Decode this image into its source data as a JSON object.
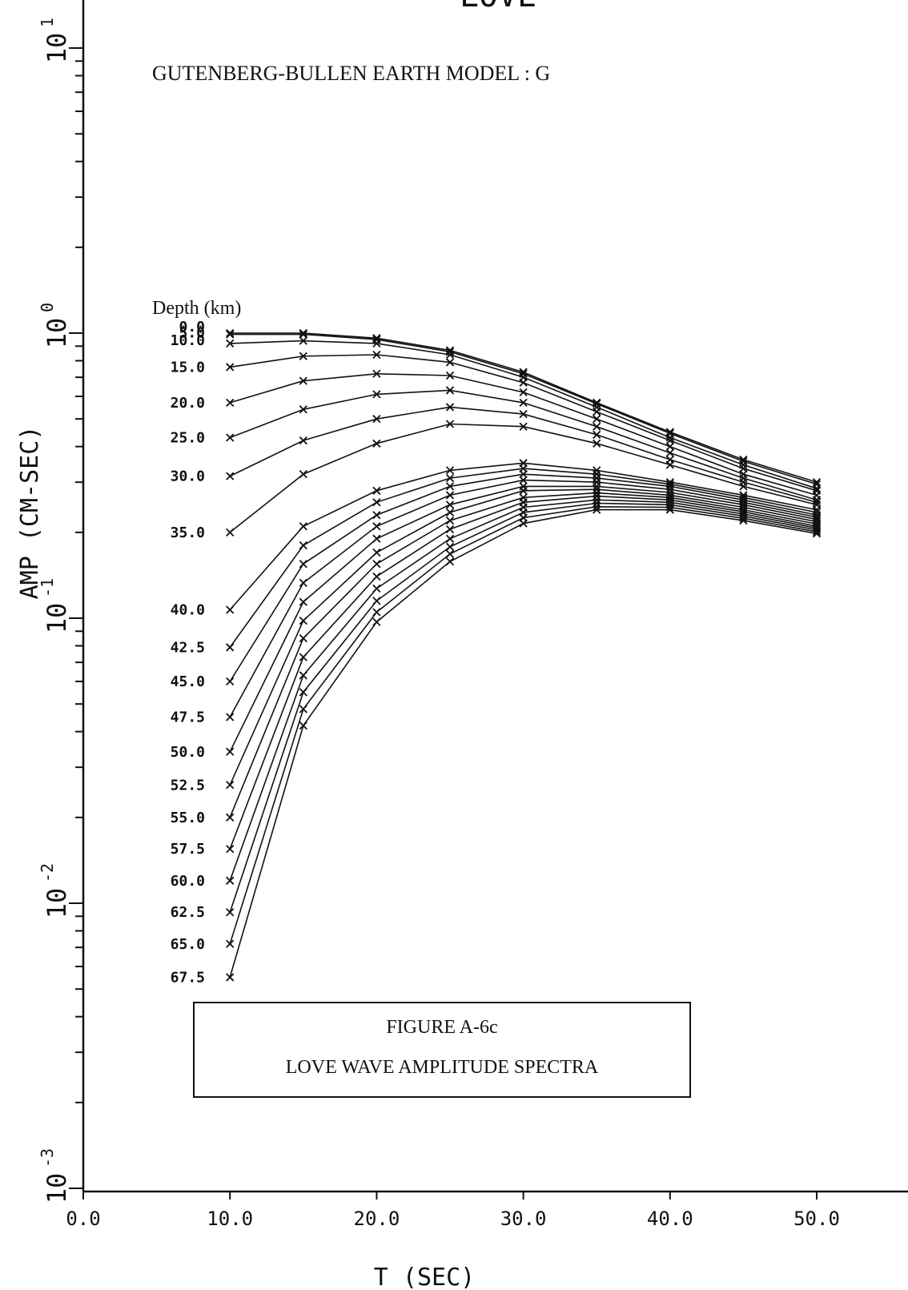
{
  "chart_data": {
    "type": "line",
    "title": "LOVE",
    "subtitle": "GUTENBERG-BULLEN EARTH MODEL :  G",
    "xlabel": "T (SEC)",
    "ylabel": "AMP (CM-SEC)",
    "legend_title": "Depth (km)",
    "xlim": [
      0,
      50
    ],
    "ylim": [
      0.001,
      10
    ],
    "y_scale": "log",
    "x_ticks": [
      0,
      10,
      20,
      30,
      40,
      50
    ],
    "x_tick_labels": [
      "0.0",
      "10.0",
      "20.0",
      "30.0",
      "40.0",
      "50.0"
    ],
    "y_tick_labels": [
      {
        "base": "10",
        "exp": "1",
        "value": 10
      },
      {
        "base": "10",
        "exp": "0",
        "value": 1
      },
      {
        "base": "10",
        "exp": "-1",
        "value": 0.1
      },
      {
        "base": "10",
        "exp": "-2",
        "value": 0.01
      },
      {
        "base": "10",
        "exp": "-3",
        "value": 0.001
      }
    ],
    "x": [
      10,
      15,
      20,
      25,
      30,
      35,
      40,
      45,
      50
    ],
    "series": [
      {
        "name": "0.0",
        "values": [
          1.0,
          1.0,
          0.96,
          0.87,
          0.73,
          0.57,
          0.45,
          0.36,
          0.3
        ]
      },
      {
        "name": "5.0",
        "values": [
          0.99,
          0.99,
          0.95,
          0.86,
          0.72,
          0.565,
          0.445,
          0.355,
          0.295
        ]
      },
      {
        "name": "10.0",
        "values": [
          0.92,
          0.94,
          0.92,
          0.84,
          0.7,
          0.55,
          0.43,
          0.345,
          0.285
        ]
      },
      {
        "name": "15.0",
        "values": [
          0.76,
          0.83,
          0.84,
          0.79,
          0.67,
          0.53,
          0.42,
          0.335,
          0.28
        ]
      },
      {
        "name": "20.0",
        "values": [
          0.57,
          0.68,
          0.72,
          0.71,
          0.62,
          0.5,
          0.4,
          0.32,
          0.27
        ]
      },
      {
        "name": "25.0",
        "values": [
          0.43,
          0.54,
          0.61,
          0.63,
          0.57,
          0.47,
          0.38,
          0.31,
          0.26
        ]
      },
      {
        "name": "30.0",
        "values": [
          0.315,
          0.42,
          0.5,
          0.55,
          0.52,
          0.44,
          0.36,
          0.3,
          0.255
        ]
      },
      {
        "name": "35.0",
        "values": [
          0.2,
          0.32,
          0.41,
          0.48,
          0.47,
          0.41,
          0.345,
          0.29,
          0.25
        ]
      },
      {
        "name": "40.0",
        "values": [
          0.107,
          0.21,
          0.28,
          0.33,
          0.35,
          0.33,
          0.3,
          0.27,
          0.24
        ]
      },
      {
        "name": "42.5",
        "values": [
          0.079,
          0.18,
          0.255,
          0.31,
          0.335,
          0.32,
          0.295,
          0.265,
          0.235
        ]
      },
      {
        "name": "45.0",
        "values": [
          0.06,
          0.155,
          0.23,
          0.29,
          0.32,
          0.31,
          0.29,
          0.26,
          0.23
        ]
      },
      {
        "name": "47.5",
        "values": [
          0.045,
          0.133,
          0.21,
          0.27,
          0.305,
          0.3,
          0.283,
          0.255,
          0.226
        ]
      },
      {
        "name": "50.0",
        "values": [
          0.034,
          0.114,
          0.19,
          0.25,
          0.29,
          0.29,
          0.276,
          0.25,
          0.222
        ]
      },
      {
        "name": "52.5",
        "values": [
          0.026,
          0.098,
          0.17,
          0.235,
          0.28,
          0.283,
          0.27,
          0.245,
          0.218
        ]
      },
      {
        "name": "55.0",
        "values": [
          0.02,
          0.085,
          0.155,
          0.22,
          0.265,
          0.275,
          0.265,
          0.24,
          0.214
        ]
      },
      {
        "name": "57.5",
        "values": [
          0.0155,
          0.073,
          0.14,
          0.205,
          0.255,
          0.268,
          0.26,
          0.236,
          0.21
        ]
      },
      {
        "name": "60.0",
        "values": [
          0.012,
          0.063,
          0.127,
          0.19,
          0.245,
          0.26,
          0.255,
          0.232,
          0.207
        ]
      },
      {
        "name": "62.5",
        "values": [
          0.0093,
          0.055,
          0.115,
          0.178,
          0.235,
          0.253,
          0.25,
          0.228,
          0.204
        ]
      },
      {
        "name": "65.0",
        "values": [
          0.0072,
          0.048,
          0.105,
          0.168,
          0.225,
          0.246,
          0.245,
          0.224,
          0.201
        ]
      },
      {
        "name": "67.5",
        "values": [
          0.0055,
          0.042,
          0.097,
          0.158,
          0.215,
          0.24,
          0.24,
          0.22,
          0.198
        ]
      }
    ],
    "grid": false,
    "legend_placement": "left"
  },
  "caption": {
    "line1": "FIGURE  A-6c",
    "line2": "LOVE  WAVE  AMPLITUDE SPECTRA"
  },
  "colors": {
    "ink": "#111111",
    "background": "#ffffff"
  }
}
